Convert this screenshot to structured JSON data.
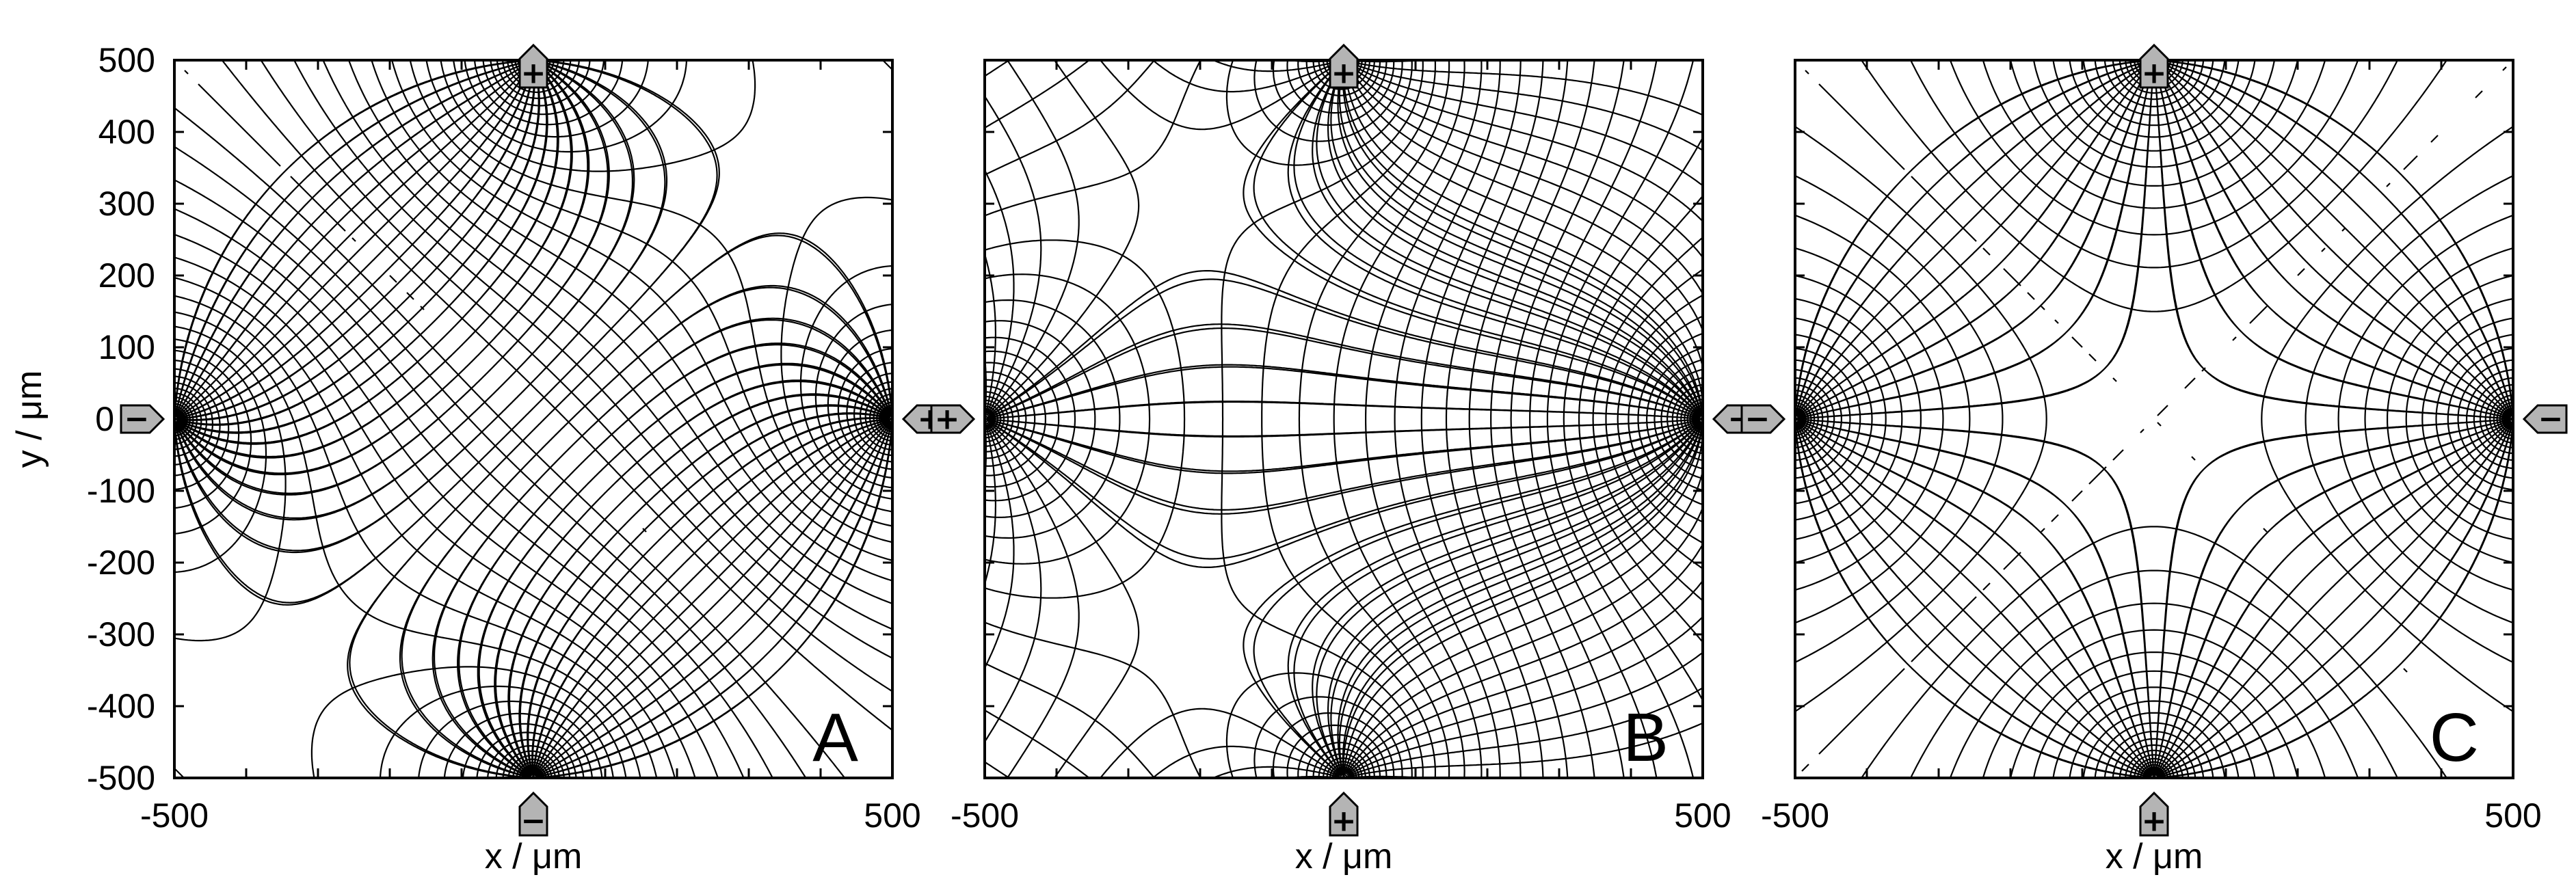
{
  "panels": [
    {
      "letter": "A",
      "x_label": "x / μm",
      "x_ticks": [
        "-500",
        "500"
      ],
      "y_label": "y / μm",
      "y_ticks": [
        "500",
        "400",
        "300",
        "200",
        "100",
        "0",
        "-100",
        "-200",
        "-300",
        "-400",
        "-500"
      ],
      "electrodes": [
        {
          "position": "top",
          "sign": "+"
        },
        {
          "position": "bottom",
          "sign": "−"
        },
        {
          "position": "left",
          "sign": "−"
        },
        {
          "position": "right",
          "sign": "+"
        }
      ]
    },
    {
      "letter": "B",
      "x_label": "x / μm",
      "x_ticks": [
        "-500",
        "500"
      ],
      "electrodes": [
        {
          "position": "top",
          "sign": "+"
        },
        {
          "position": "bottom",
          "sign": "+"
        },
        {
          "position": "left",
          "sign": "+"
        },
        {
          "position": "right",
          "sign": "−"
        }
      ]
    },
    {
      "letter": "C",
      "x_label": "x / μm",
      "x_ticks": [
        "-500",
        "500"
      ],
      "electrodes": [
        {
          "position": "top",
          "sign": "+"
        },
        {
          "position": "bottom",
          "sign": "+"
        },
        {
          "position": "left",
          "sign": "−"
        },
        {
          "position": "right",
          "sign": "−"
        }
      ]
    }
  ]
}
